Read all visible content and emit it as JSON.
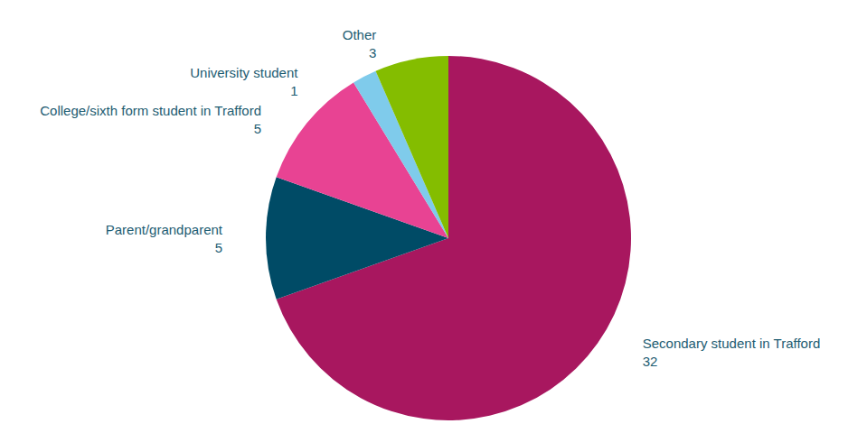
{
  "chart_data": {
    "type": "pie",
    "categories": [
      "Secondary student in Trafford",
      "Parent/grandparent",
      "College/sixth form student in Trafford",
      "University student",
      "Other"
    ],
    "values": [
      32,
      5,
      5,
      1,
      3
    ],
    "colors": [
      "#a8175f",
      "#004b66",
      "#e84393",
      "#7fcbeb",
      "#84bd00"
    ],
    "data_labels": true
  }
}
